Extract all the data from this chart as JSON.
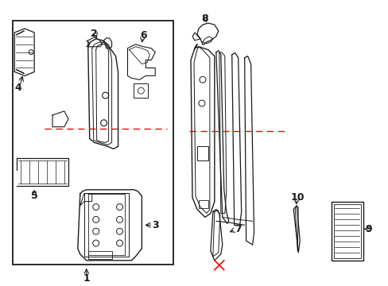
{
  "bg_color": "#ffffff",
  "line_color": "#1a1a1a",
  "red_color": "#ff0000",
  "figsize": [
    4.89,
    3.6
  ],
  "dpi": 100
}
